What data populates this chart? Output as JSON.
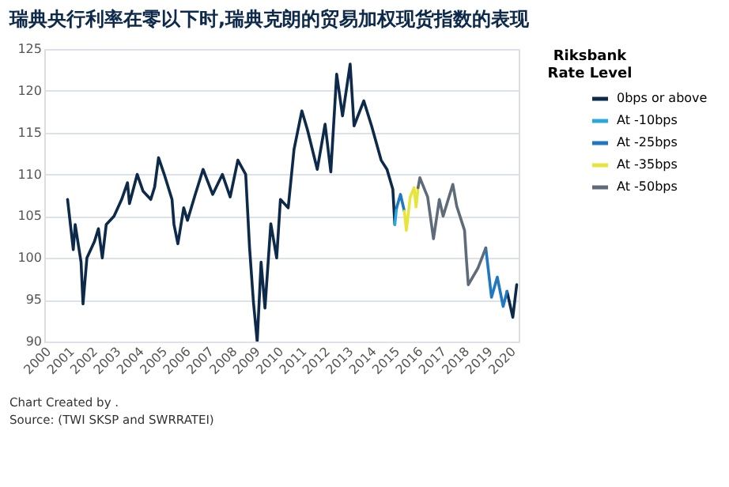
{
  "chart_data": {
    "type": "line",
    "title": "瑞典央行利率在零以下时,瑞典克朗的贸易加权现货指数的表现",
    "legend_title": "Riksbank\nRate Level",
    "legend": "right",
    "grid": "y",
    "marker": "none",
    "line_style": "solid",
    "xlim": [
      "2000-01",
      "2020-06"
    ],
    "xticks": [
      "2000",
      "2001",
      "2002",
      "2003",
      "2004",
      "2005",
      "2006",
      "2007",
      "2008",
      "2009",
      "2010",
      "2011",
      "2012",
      "2013",
      "2014",
      "2015",
      "2016",
      "2017",
      "2018",
      "2019",
      "2020"
    ],
    "ylim": [
      90,
      125
    ],
    "yticks": [
      90,
      95,
      100,
      105,
      110,
      115,
      120,
      125
    ],
    "annotations": [
      "Chart Created by .",
      "Source: (TWI SKSP and SWRRATEI)"
    ],
    "series": [
      {
        "name": "0bps or above",
        "color": "#0d2a4a",
        "x": [
          "2001-01",
          "2001-04",
          "2001-05",
          "2001-08",
          "2001-09",
          "2001-11",
          "2002-03",
          "2002-05",
          "2002-07",
          "2002-09",
          "2003-01",
          "2003-05",
          "2003-08",
          "2003-09",
          "2004-01",
          "2004-04",
          "2004-08",
          "2004-10",
          "2004-12",
          "2005-03",
          "2005-07",
          "2005-08",
          "2005-10",
          "2006-01",
          "2006-03",
          "2006-07",
          "2006-11",
          "2007-04",
          "2007-09",
          "2008-01",
          "2008-05",
          "2008-09",
          "2008-11",
          "2009-01",
          "2009-03",
          "2009-05",
          "2009-07",
          "2009-10",
          "2010-01",
          "2010-03",
          "2010-07",
          "2010-10",
          "2011-02",
          "2011-05",
          "2011-10",
          "2012-02",
          "2012-05",
          "2012-08",
          "2012-11",
          "2013-03",
          "2013-05",
          "2013-10",
          "2014-02",
          "2014-07",
          "2014-10",
          "2015-01",
          "2015-02",
          "2017-01",
          "2019-12",
          "2020-03",
          "2020-05"
        ],
        "values": [
          107,
          101,
          104,
          99.5,
          94.5,
          100,
          102,
          103.5,
          100,
          104,
          105,
          107,
          109,
          106.5,
          110,
          108,
          107,
          108.5,
          112,
          110,
          107,
          104,
          101.7,
          106,
          104.5,
          107.6,
          110.6,
          107.6,
          110,
          107.3,
          111.7,
          110,
          101.2,
          94.7,
          90,
          99.5,
          94,
          104.1,
          100,
          107,
          106,
          113,
          117.6,
          115.3,
          110.6,
          116,
          110.3,
          122,
          117,
          123.2,
          115.8,
          118.8,
          115.8,
          111.7,
          110.6,
          108.2,
          104,
          null,
          96,
          92.9,
          96.8
        ]
      },
      {
        "name": "At -10bps",
        "color": "#29a8e0",
        "x": [
          "2015-02",
          "2015-03"
        ],
        "values": [
          104,
          106
        ]
      },
      {
        "name": "At -25bps",
        "color": "#1f78c1",
        "x": [
          "2015-03",
          "2015-05",
          "2015-07",
          "2017-01",
          "2019-01",
          "2019-04",
          "2019-07",
          "2019-10",
          "2019-12"
        ],
        "values": [
          106,
          107.6,
          105.6,
          null,
          101.2,
          95.3,
          97.7,
          94.2,
          96
        ]
      },
      {
        "name": "At -35bps",
        "color": "#e6e63a",
        "x": [
          "2015-07",
          "2015-08",
          "2015-10",
          "2015-12",
          "2016-01",
          "2016-02"
        ],
        "values": [
          105.6,
          103.3,
          107.3,
          108.4,
          106.1,
          108.4
        ]
      },
      {
        "name": "At -50bps",
        "color": "#5e6b78",
        "x": [
          "2016-02",
          "2016-03",
          "2016-07",
          "2016-08",
          "2016-10",
          "2017-01",
          "2017-03",
          "2017-08",
          "2017-10",
          "2018-02",
          "2018-03",
          "2018-04",
          "2018-09",
          "2019-01"
        ],
        "values": [
          108.4,
          109.6,
          107.3,
          105.6,
          102.3,
          107,
          105,
          108.8,
          106.2,
          103.3,
          100,
          96.8,
          98.8,
          101.2
        ]
      }
    ]
  }
}
